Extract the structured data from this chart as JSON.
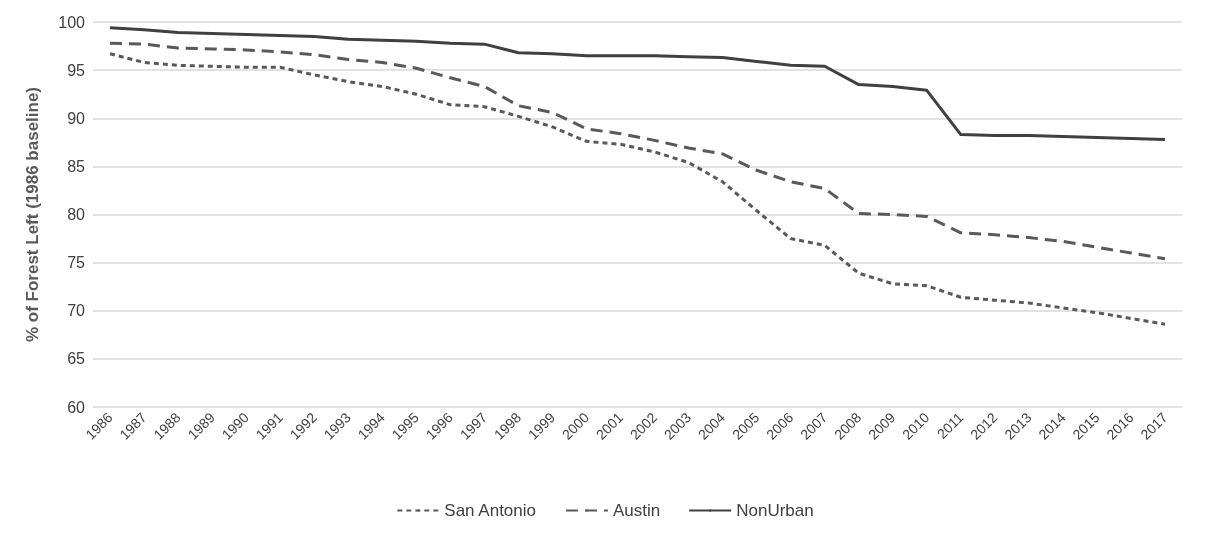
{
  "chart_data": {
    "type": "line",
    "ylabel": "% of Forest Left (1986 baseline)",
    "categories": [
      "1986",
      "1987",
      "1988",
      "1989",
      "1990",
      "1991",
      "1992",
      "1993",
      "1994",
      "1995",
      "1996",
      "1997",
      "1998",
      "1999",
      "2000",
      "2001",
      "2002",
      "2003",
      "2004",
      "2005",
      "2006",
      "2007",
      "2008",
      "2009",
      "2010",
      "2011",
      "2012",
      "2013",
      "2014",
      "2015",
      "2016",
      "2017"
    ],
    "series": [
      {
        "name": "San Antonio",
        "color": "#595959",
        "line_style": "dotted",
        "values": [
          96.7,
          95.8,
          95.5,
          95.4,
          95.3,
          95.3,
          94.5,
          93.8,
          93.3,
          92.5,
          91.4,
          91.2,
          90.2,
          89.1,
          87.6,
          87.3,
          86.5,
          85.4,
          83.4,
          80.4,
          77.5,
          76.8,
          73.9,
          72.8,
          72.6,
          71.4,
          71.1,
          70.8,
          70.3,
          69.8,
          69.2,
          68.6
        ]
      },
      {
        "name": "Austin",
        "color": "#595959",
        "line_style": "dashed",
        "values": [
          97.8,
          97.7,
          97.3,
          97.2,
          97.1,
          96.9,
          96.6,
          96.1,
          95.8,
          95.2,
          94.2,
          93.3,
          91.3,
          90.6,
          88.9,
          88.4,
          87.7,
          86.9,
          86.3,
          84.6,
          83.4,
          82.7,
          80.1,
          80.0,
          79.8,
          78.1,
          77.9,
          77.6,
          77.2,
          76.6,
          76.0,
          75.4
        ]
      },
      {
        "name": "NonUrban",
        "color": "#404040",
        "line_style": "solid",
        "values": [
          99.4,
          99.2,
          98.9,
          98.8,
          98.7,
          98.6,
          98.5,
          98.2,
          98.1,
          98.0,
          97.8,
          97.7,
          96.8,
          96.7,
          96.5,
          96.5,
          96.5,
          96.4,
          96.3,
          95.9,
          95.5,
          95.4,
          93.5,
          93.3,
          92.9,
          88.3,
          88.2,
          88.2,
          88.1,
          88.0,
          87.9,
          87.8
        ]
      }
    ],
    "ylim": [
      60,
      100
    ],
    "yticks": [
      60,
      65,
      70,
      75,
      80,
      85,
      90,
      95,
      100
    ],
    "grid": "y",
    "legend": "bottom",
    "marker": "none"
  }
}
